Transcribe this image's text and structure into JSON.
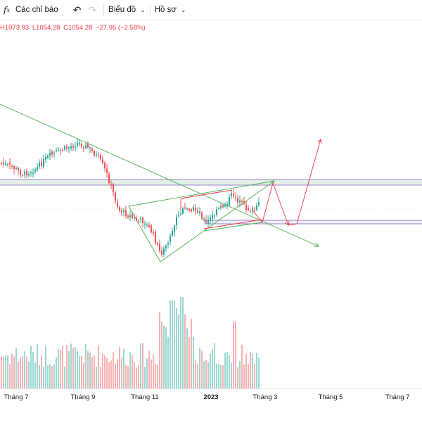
{
  "toolbar": {
    "indicators_label": "Các chỉ báo",
    "chart_type_label": "Biểu đồ",
    "profile_label": "Hồ sơ"
  },
  "ohlc": {
    "high": "H1073.93",
    "low": "L1054.28",
    "close": "C1054.28",
    "change": "−27.95 (−2.58%)"
  },
  "x_axis": {
    "labels": [
      "Tháng 7",
      "Tháng 9",
      "Tháng 11",
      "2023",
      "Tháng 3",
      "Tháng 5",
      "Tháng 7"
    ]
  },
  "colors": {
    "up": "#26a69a",
    "down": "#ef5350",
    "trendline": "#4caf50",
    "projection": "#f23645",
    "zone_fill": "#e3f0e6",
    "zone_border": "#7e57c2"
  },
  "chart_data": {
    "type": "candlestick",
    "notes": "price chart with candlesticks, volume bars, trendlines, horizontal zones and a hand-drawn projection path; price axis not visible so values are not readable"
  }
}
